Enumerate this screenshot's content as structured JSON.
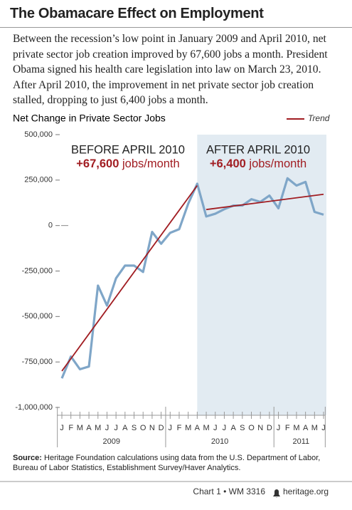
{
  "title": "The Obamacare Effect on Employment",
  "subtitle": "Between the recession’s low point in January 2009 and April 2010, net private sector job creation improved by 67,600 jobs a month. President Obama signed his health care legislation into law on March 23, 2010. After April 2010, the improvement in net private sector job creation stalled, dropping to just 6,400 jobs a month.",
  "chart_data": {
    "type": "line",
    "title": "Net Change in Private Sector Jobs",
    "categories": [
      "J",
      "F",
      "M",
      "A",
      "M",
      "J",
      "J",
      "A",
      "S",
      "O",
      "N",
      "D",
      "J",
      "F",
      "M",
      "A",
      "M",
      "J",
      "J",
      "A",
      "S",
      "O",
      "N",
      "D",
      "J",
      "F",
      "M",
      "A",
      "M",
      "J"
    ],
    "years": [
      {
        "label": "2009",
        "months": 12
      },
      {
        "label": "2010",
        "months": 12
      },
      {
        "label": "2011",
        "months": 6
      }
    ],
    "values": [
      -840000,
      -720000,
      -790000,
      -775000,
      -330000,
      -440000,
      -290000,
      -220000,
      -220000,
      -255000,
      -35000,
      -100000,
      -40000,
      -20000,
      120000,
      230000,
      50000,
      65000,
      90000,
      110000,
      110000,
      145000,
      130000,
      165000,
      95000,
      260000,
      220000,
      240000,
      75000,
      60000
    ],
    "color": "#7fa6c8",
    "trend": {
      "name": "Trend",
      "color": "#a11d22",
      "segments": [
        {
          "start": 0,
          "end": 15,
          "values": [
            -800000,
            220000
          ]
        },
        {
          "start": 16,
          "end": 29,
          "values": [
            88000,
            172000
          ]
        }
      ]
    },
    "ylim": [
      -1000000,
      500000
    ],
    "yticks": [
      {
        "value": 500000,
        "label": "500,000"
      },
      {
        "value": 250000,
        "label": "250,000"
      },
      0,
      {
        "value": -250000,
        "label": "-250,000"
      },
      {
        "value": -500000,
        "label": "-500,000"
      },
      {
        "value": -750000,
        "label": "-750,000"
      },
      {
        "value": -1000000,
        "label": "-1,000,000"
      }
    ],
    "annotations": [
      {
        "label": "BEFORE APRIL 2010",
        "value": "+67,600",
        "unit": "jobs/month"
      },
      {
        "label": "AFTER APRIL 2010",
        "value": "+6,400",
        "unit": "jobs/month"
      }
    ],
    "shade_start": 15
  },
  "source": {
    "label": "Source:",
    "text": "Heritage Foundation calculations using data from the U.S. Department of Labor, Bureau of Labor Statistics, Establishment Survey/Haver Analytics."
  },
  "footer": {
    "chart": "Chart 1 • WM 3316",
    "site": "heritage.org"
  }
}
